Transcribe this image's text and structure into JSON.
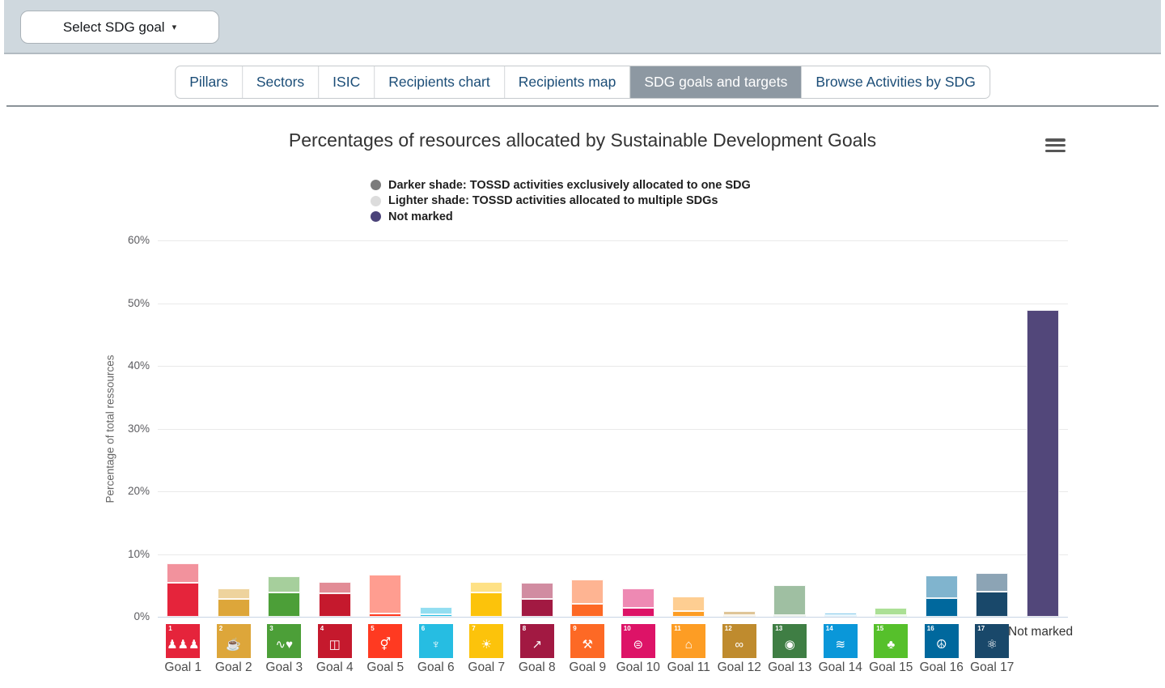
{
  "topbar": {
    "select_button_label": "Select SDG goal",
    "caret_glyph": "▾"
  },
  "tabs": {
    "items": [
      {
        "label": "Pillars",
        "active": false
      },
      {
        "label": "Sectors",
        "active": false
      },
      {
        "label": "ISIC",
        "active": false
      },
      {
        "label": "Recipients chart",
        "active": false
      },
      {
        "label": "Recipients map",
        "active": false
      },
      {
        "label": "SDG goals and targets",
        "active": true
      },
      {
        "label": "Browse Activities by SDG",
        "active": false
      }
    ],
    "active_bg": "#8d98a2",
    "text_color": "#1b4d77"
  },
  "chart": {
    "title": "Percentages of resources allocated by Sustainable Development Goals",
    "menu_icon": "hamburger-icon",
    "legend": [
      {
        "color": "#7b7b7b",
        "label": "Darker shade: TOSSD activities exclusively allocated to one SDG"
      },
      {
        "color": "#dcdcdc",
        "label": "Lighter shade: TOSSD activities allocated to multiple SDGs"
      },
      {
        "color": "#4b4379",
        "label": "Not marked"
      }
    ]
  },
  "chart_data": {
    "type": "bar",
    "stacked": true,
    "grid": true,
    "title": "Percentages of resources allocated by Sustainable Development Goals",
    "xlabel": "",
    "ylabel": "Percentage of total ressources",
    "ylim": [
      0,
      60
    ],
    "ytick_values": [
      0,
      10,
      20,
      30,
      40,
      50,
      60
    ],
    "ytick_labels": [
      "0%",
      "10%",
      "20%",
      "30%",
      "40%",
      "50%",
      "60%"
    ],
    "legend_position": "top",
    "categories": [
      "Goal 1",
      "Goal 2",
      "Goal 3",
      "Goal 4",
      "Goal 5",
      "Goal 6",
      "Goal 7",
      "Goal 8",
      "Goal 9",
      "Goal 10",
      "Goal 11",
      "Goal 12",
      "Goal 13",
      "Goal 14",
      "Goal 15",
      "Goal 16",
      "Goal 17",
      "Not marked"
    ],
    "series": [
      {
        "name": "Darker shade: TOSSD activities exclusively allocated to one SDG",
        "values": [
          5.4,
          2.8,
          3.9,
          3.7,
          0.5,
          0.4,
          3.9,
          2.8,
          2.1,
          1.4,
          0.9,
          0.2,
          0.3,
          0.2,
          0.3,
          3.0,
          4.0,
          0
        ]
      },
      {
        "name": "Lighter shade: TOSSD activities allocated to multiple SDGs",
        "values": [
          3.1,
          1.7,
          2.6,
          1.8,
          6.2,
          1.1,
          1.6,
          2.6,
          3.9,
          3.1,
          2.3,
          0.7,
          4.7,
          0.5,
          1.1,
          3.6,
          3.0,
          0
        ]
      },
      {
        "name": "Not marked",
        "values": [
          0,
          0,
          0,
          0,
          0,
          0,
          0,
          0,
          0,
          0,
          0,
          0,
          0,
          0,
          0,
          0,
          0,
          48.9
        ]
      }
    ],
    "not_marked_color": "#52477a",
    "not_marked_label": "Not marked",
    "sdg_icons": [
      {
        "num": "1",
        "glyph": "♟♟♟",
        "color_dark": "#e5243b",
        "color_light": "#f2929d"
      },
      {
        "num": "2",
        "glyph": "☕",
        "color_dark": "#dda63a",
        "color_light": "#eed39d"
      },
      {
        "num": "3",
        "glyph": "∿♥",
        "color_dark": "#4c9f38",
        "color_light": "#a6cf9c"
      },
      {
        "num": "4",
        "glyph": "◫",
        "color_dark": "#c5192d",
        "color_light": "#e28c96"
      },
      {
        "num": "5",
        "glyph": "⚥",
        "color_dark": "#ff3a21",
        "color_light": "#ff9d90"
      },
      {
        "num": "6",
        "glyph": "♆",
        "color_dark": "#26bde2",
        "color_light": "#93def1"
      },
      {
        "num": "7",
        "glyph": "☀",
        "color_dark": "#fcc30b",
        "color_light": "#fee185"
      },
      {
        "num": "8",
        "glyph": "↗",
        "color_dark": "#a21942",
        "color_light": "#d18ca1"
      },
      {
        "num": "9",
        "glyph": "⚒",
        "color_dark": "#fd6925",
        "color_light": "#feb492"
      },
      {
        "num": "10",
        "glyph": "⊜",
        "color_dark": "#dd1367",
        "color_light": "#ee89b3"
      },
      {
        "num": "11",
        "glyph": "⌂",
        "color_dark": "#fd9d24",
        "color_light": "#fece92"
      },
      {
        "num": "12",
        "glyph": "∞",
        "color_dark": "#bf8b2e",
        "color_light": "#dfc597"
      },
      {
        "num": "13",
        "glyph": "◉",
        "color_dark": "#3f7e44",
        "color_light": "#9fbfa2"
      },
      {
        "num": "14",
        "glyph": "≋",
        "color_dark": "#0a97d9",
        "color_light": "#85cbec"
      },
      {
        "num": "15",
        "glyph": "♣",
        "color_dark": "#56c02b",
        "color_light": "#abe095"
      },
      {
        "num": "16",
        "glyph": "☮",
        "color_dark": "#00689d",
        "color_light": "#80b4ce"
      },
      {
        "num": "17",
        "glyph": "⚛",
        "color_dark": "#19486a",
        "color_light": "#8ca4b5"
      }
    ]
  }
}
